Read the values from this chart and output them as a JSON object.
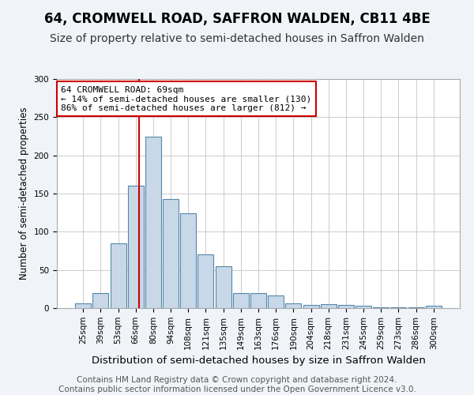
{
  "title": "64, CROMWELL ROAD, SAFFRON WALDEN, CB11 4BE",
  "subtitle": "Size of property relative to semi-detached houses in Saffron Walden",
  "xlabel": "Distribution of semi-detached houses by size in Saffron Walden",
  "ylabel": "Number of semi-detached properties",
  "categories": [
    "25sqm",
    "39sqm",
    "53sqm",
    "66sqm",
    "80sqm",
    "94sqm",
    "108sqm",
    "121sqm",
    "135sqm",
    "149sqm",
    "163sqm",
    "176sqm",
    "190sqm",
    "204sqm",
    "218sqm",
    "231sqm",
    "245sqm",
    "259sqm",
    "273sqm",
    "286sqm",
    "300sqm"
  ],
  "values": [
    6,
    20,
    85,
    160,
    225,
    143,
    124,
    70,
    55,
    20,
    20,
    17,
    6,
    4,
    5,
    4,
    3,
    1,
    1,
    1,
    3
  ],
  "bar_color": "#c8d8e8",
  "bar_edge_color": "#5588aa",
  "vline_color": "#cc0000",
  "annotation_text": "64 CROMWELL ROAD: 69sqm\n← 14% of semi-detached houses are smaller (130)\n86% of semi-detached houses are larger (812) →",
  "annotation_box_color": "#ffffff",
  "annotation_box_edge": "#cc0000",
  "ylim": [
    0,
    300
  ],
  "yticks": [
    0,
    50,
    100,
    150,
    200,
    250,
    300
  ],
  "footer_line1": "Contains HM Land Registry data © Crown copyright and database right 2024.",
  "footer_line2": "Contains public sector information licensed under the Open Government Licence v3.0.",
  "bg_color": "#f0f4f8",
  "plot_bg_color": "#ffffff",
  "title_fontsize": 12,
  "subtitle_fontsize": 10,
  "xlabel_fontsize": 9.5,
  "ylabel_fontsize": 8.5,
  "tick_fontsize": 7.5,
  "footer_fontsize": 7.5,
  "grid_color": "#cccccc"
}
